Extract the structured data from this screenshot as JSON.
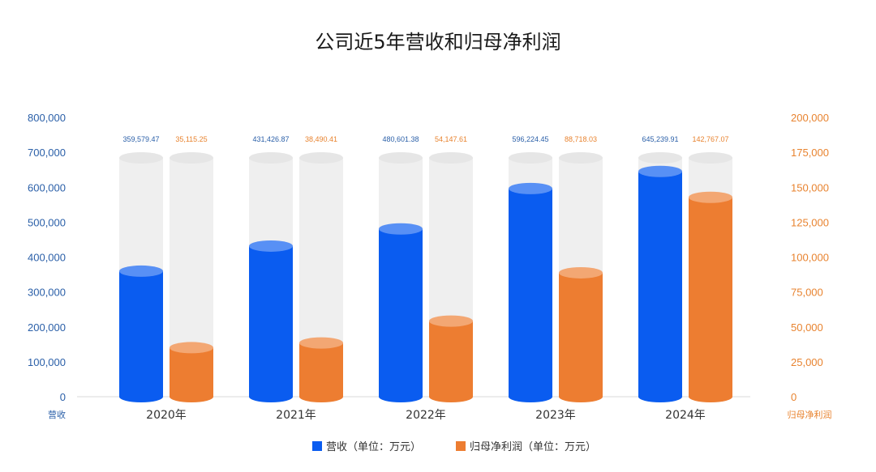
{
  "chart_data": {
    "type": "bar",
    "title": "公司近5年营收和归母净利润",
    "categories": [
      "2020年",
      "2021年",
      "2022年",
      "2023年",
      "2024年"
    ],
    "series": [
      {
        "name": "营收（单位：万元）",
        "axis": "left",
        "color": "#0a5cf0",
        "values": [
          359579.47,
          431426.87,
          480601.38,
          596224.45,
          645239.91
        ],
        "labels": [
          "359,579.47",
          "431,426.87",
          "480,601.38",
          "596,224.45",
          "645,239.91"
        ]
      },
      {
        "name": "归母净利润（单位：万元）",
        "axis": "right",
        "color": "#ed7d31",
        "values": [
          35115.25,
          38490.41,
          54147.61,
          88718.03,
          142767.07
        ],
        "labels": [
          "35,115.25",
          "38,490.41",
          "54,147.61",
          "88,718.03",
          "142,767.07"
        ]
      }
    ],
    "y_left": {
      "label": "营收",
      "ylim": [
        0,
        800000
      ],
      "ticks": [
        "0",
        "100,000",
        "200,000",
        "300,000",
        "400,000",
        "500,000",
        "600,000",
        "700,000",
        "800,000"
      ]
    },
    "y_right": {
      "label": "归母净利润",
      "ylim": [
        0,
        200000
      ],
      "ticks": [
        "0",
        "25,000",
        "50,000",
        "75,000",
        "100,000",
        "125,000",
        "150,000",
        "175,000",
        "200,000"
      ]
    },
    "background_cylinder_color": "#efefef",
    "grid": false,
    "legend": "bottom"
  }
}
